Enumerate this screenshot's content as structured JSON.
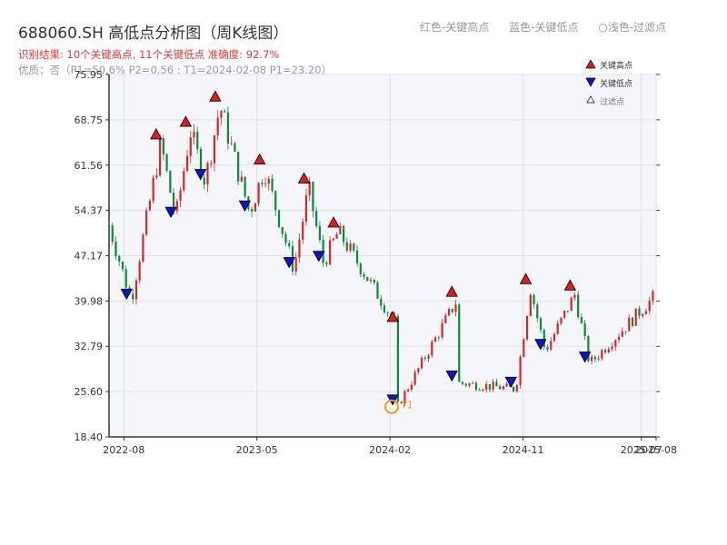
{
  "title": "688060.SH 高低点分析图（周K线图）",
  "legend_top": [
    "红色-关键高点",
    "蓝色-关键低点",
    "○浅色-过滤点"
  ],
  "result_line": "识别结果: 10个关键高点, 11个关键低点  准确度: 92.7%",
  "quality_line": "优质：否（P1=50.6%  P2=0.56 ; T1=2024-02-08 P1=23.20）",
  "legend_box": {
    "high": "关键高点",
    "low": "关键低点",
    "filtered": "过滤点"
  },
  "colors": {
    "up": "#d62728",
    "down": "#0a8a3a",
    "high_marker": "#e31a1c",
    "low_marker": "#1010d0",
    "t1": "#f39c12"
  },
  "t1_label": "T1",
  "chart_data": {
    "type": "candlestick",
    "x_ticks": [
      "2022-08",
      "2023-05",
      "2024-02",
      "2024-11",
      "2025-07",
      "2025-08"
    ],
    "y_ticks": [
      "18.40",
      "25.60",
      "32.79",
      "39.98",
      "47.17",
      "54.37",
      "61.56",
      "68.75",
      "75.95"
    ],
    "ylim": [
      18.4,
      75.95
    ],
    "x_range": [
      "2022-07",
      "2025-08"
    ],
    "grid": true,
    "key_highs": [
      {
        "date": "2022-10",
        "value": 65
      },
      {
        "date": "2022-12",
        "value": 67
      },
      {
        "date": "2023-02",
        "value": 71
      },
      {
        "date": "2023-05",
        "value": 61
      },
      {
        "date": "2023-08",
        "value": 58
      },
      {
        "date": "2023-10",
        "value": 51
      },
      {
        "date": "2024-02",
        "value": 36
      },
      {
        "date": "2024-06",
        "value": 40
      },
      {
        "date": "2024-11",
        "value": 42
      },
      {
        "date": "2025-02",
        "value": 41
      }
    ],
    "key_lows": [
      {
        "date": "2022-08",
        "value": 40
      },
      {
        "date": "2022-11",
        "value": 53
      },
      {
        "date": "2023-01",
        "value": 59
      },
      {
        "date": "2023-04",
        "value": 54
      },
      {
        "date": "2023-07",
        "value": 45
      },
      {
        "date": "2023-09",
        "value": 46
      },
      {
        "date": "2024-02",
        "value": 23.2
      },
      {
        "date": "2024-06",
        "value": 27
      },
      {
        "date": "2024-10",
        "value": 26
      },
      {
        "date": "2024-12",
        "value": 32
      },
      {
        "date": "2025-03",
        "value": 30
      }
    ],
    "t1": {
      "date": "2024-02-08",
      "value": 23.2
    }
  }
}
